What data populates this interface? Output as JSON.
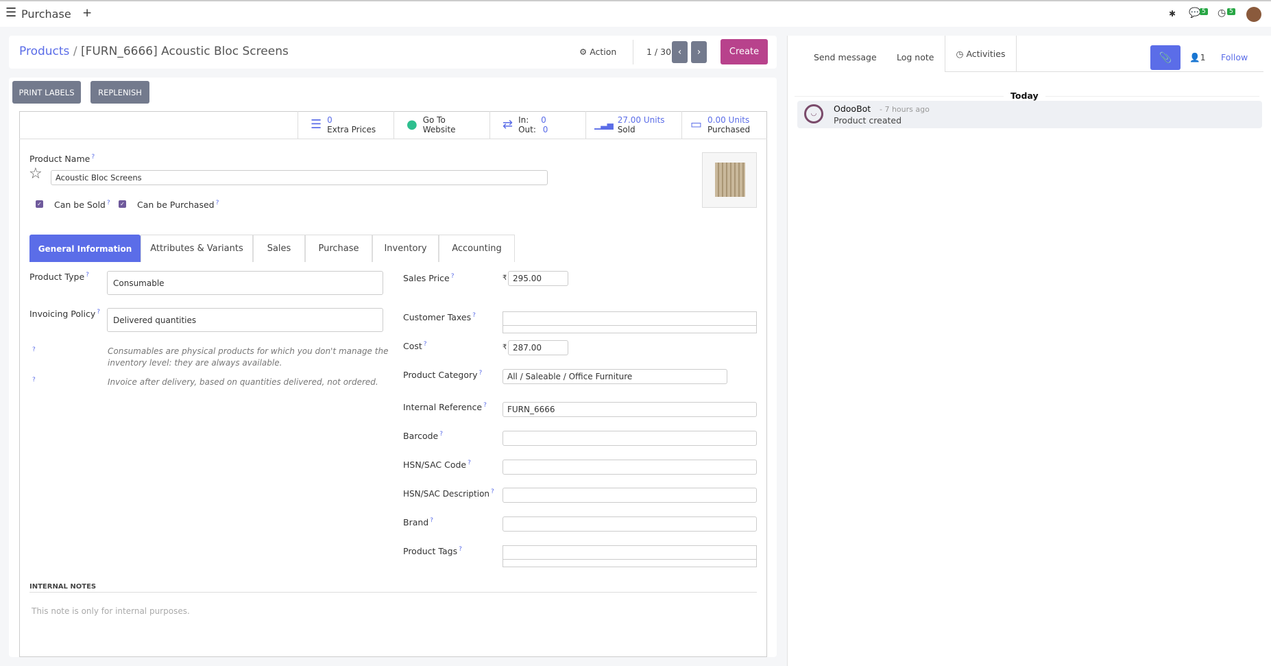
{
  "topbar": {
    "app": "Purchase",
    "messages_count": "5",
    "activities_count": "5"
  },
  "breadcrumb": {
    "parent": "Products",
    "current": "[FURN_6666] Acoustic Bloc Screens"
  },
  "controlpanel": {
    "action": "Action",
    "pager": "1 / 30",
    "create": "Create"
  },
  "buttons": {
    "print_labels": "PRINT LABELS",
    "replenish": "REPLENISH"
  },
  "smart": [
    {
      "value": "0",
      "label": "Extra Prices"
    },
    {
      "value": "Go To",
      "label": "Website"
    },
    {
      "in_label": "In:",
      "in": "0",
      "out_label": "Out:",
      "out": "0"
    },
    {
      "value": "27.00 Units",
      "label": "Sold"
    },
    {
      "value": "0.00 Units",
      "label": "Purchased"
    }
  ],
  "product": {
    "name_label": "Product Name",
    "name": "Acoustic Bloc Screens",
    "can_sold": "Can be Sold",
    "can_purchased": "Can be Purchased",
    "can_sold_checked": true,
    "can_purchased_checked": true
  },
  "tabs": [
    "General Information",
    "Attributes & Variants",
    "Sales",
    "Purchase",
    "Inventory",
    "Accounting"
  ],
  "left": {
    "type_label": "Product Type",
    "type": "Consumable",
    "policy_label": "Invoicing Policy",
    "policy": "Delivered quantities",
    "help1": "Consumables are physical products for which you don't manage the inventory level: they are always available.",
    "help2": "Invoice after delivery, based on quantities delivered, not ordered."
  },
  "right": {
    "currency": "₹",
    "sales_price_label": "Sales Price",
    "sales_price": "295.00",
    "taxes_label": "Customer Taxes",
    "cost_label": "Cost",
    "cost": "287.00",
    "category_label": "Product Category",
    "category": "All / Saleable / Office Furniture",
    "ref_label": "Internal Reference",
    "ref": "FURN_6666",
    "barcode_label": "Barcode",
    "hsn_label": "HSN/SAC Code",
    "hsn_desc_label": "HSN/SAC Description",
    "brand_label": "Brand",
    "tags_label": "Product Tags"
  },
  "notes": {
    "title": "INTERNAL NOTES",
    "placeholder": "This note is only for internal purposes."
  },
  "chatter": {
    "send": "Send message",
    "log": "Log note",
    "activities": "Activities",
    "followers": "1",
    "follow": "Follow",
    "today": "Today",
    "author": "OdooBot",
    "time": "- 7 hours ago",
    "body": "Product created"
  },
  "colors": {
    "primary": "#5b6de8",
    "create": "#b8428c",
    "gray_button": "#737a8d"
  }
}
